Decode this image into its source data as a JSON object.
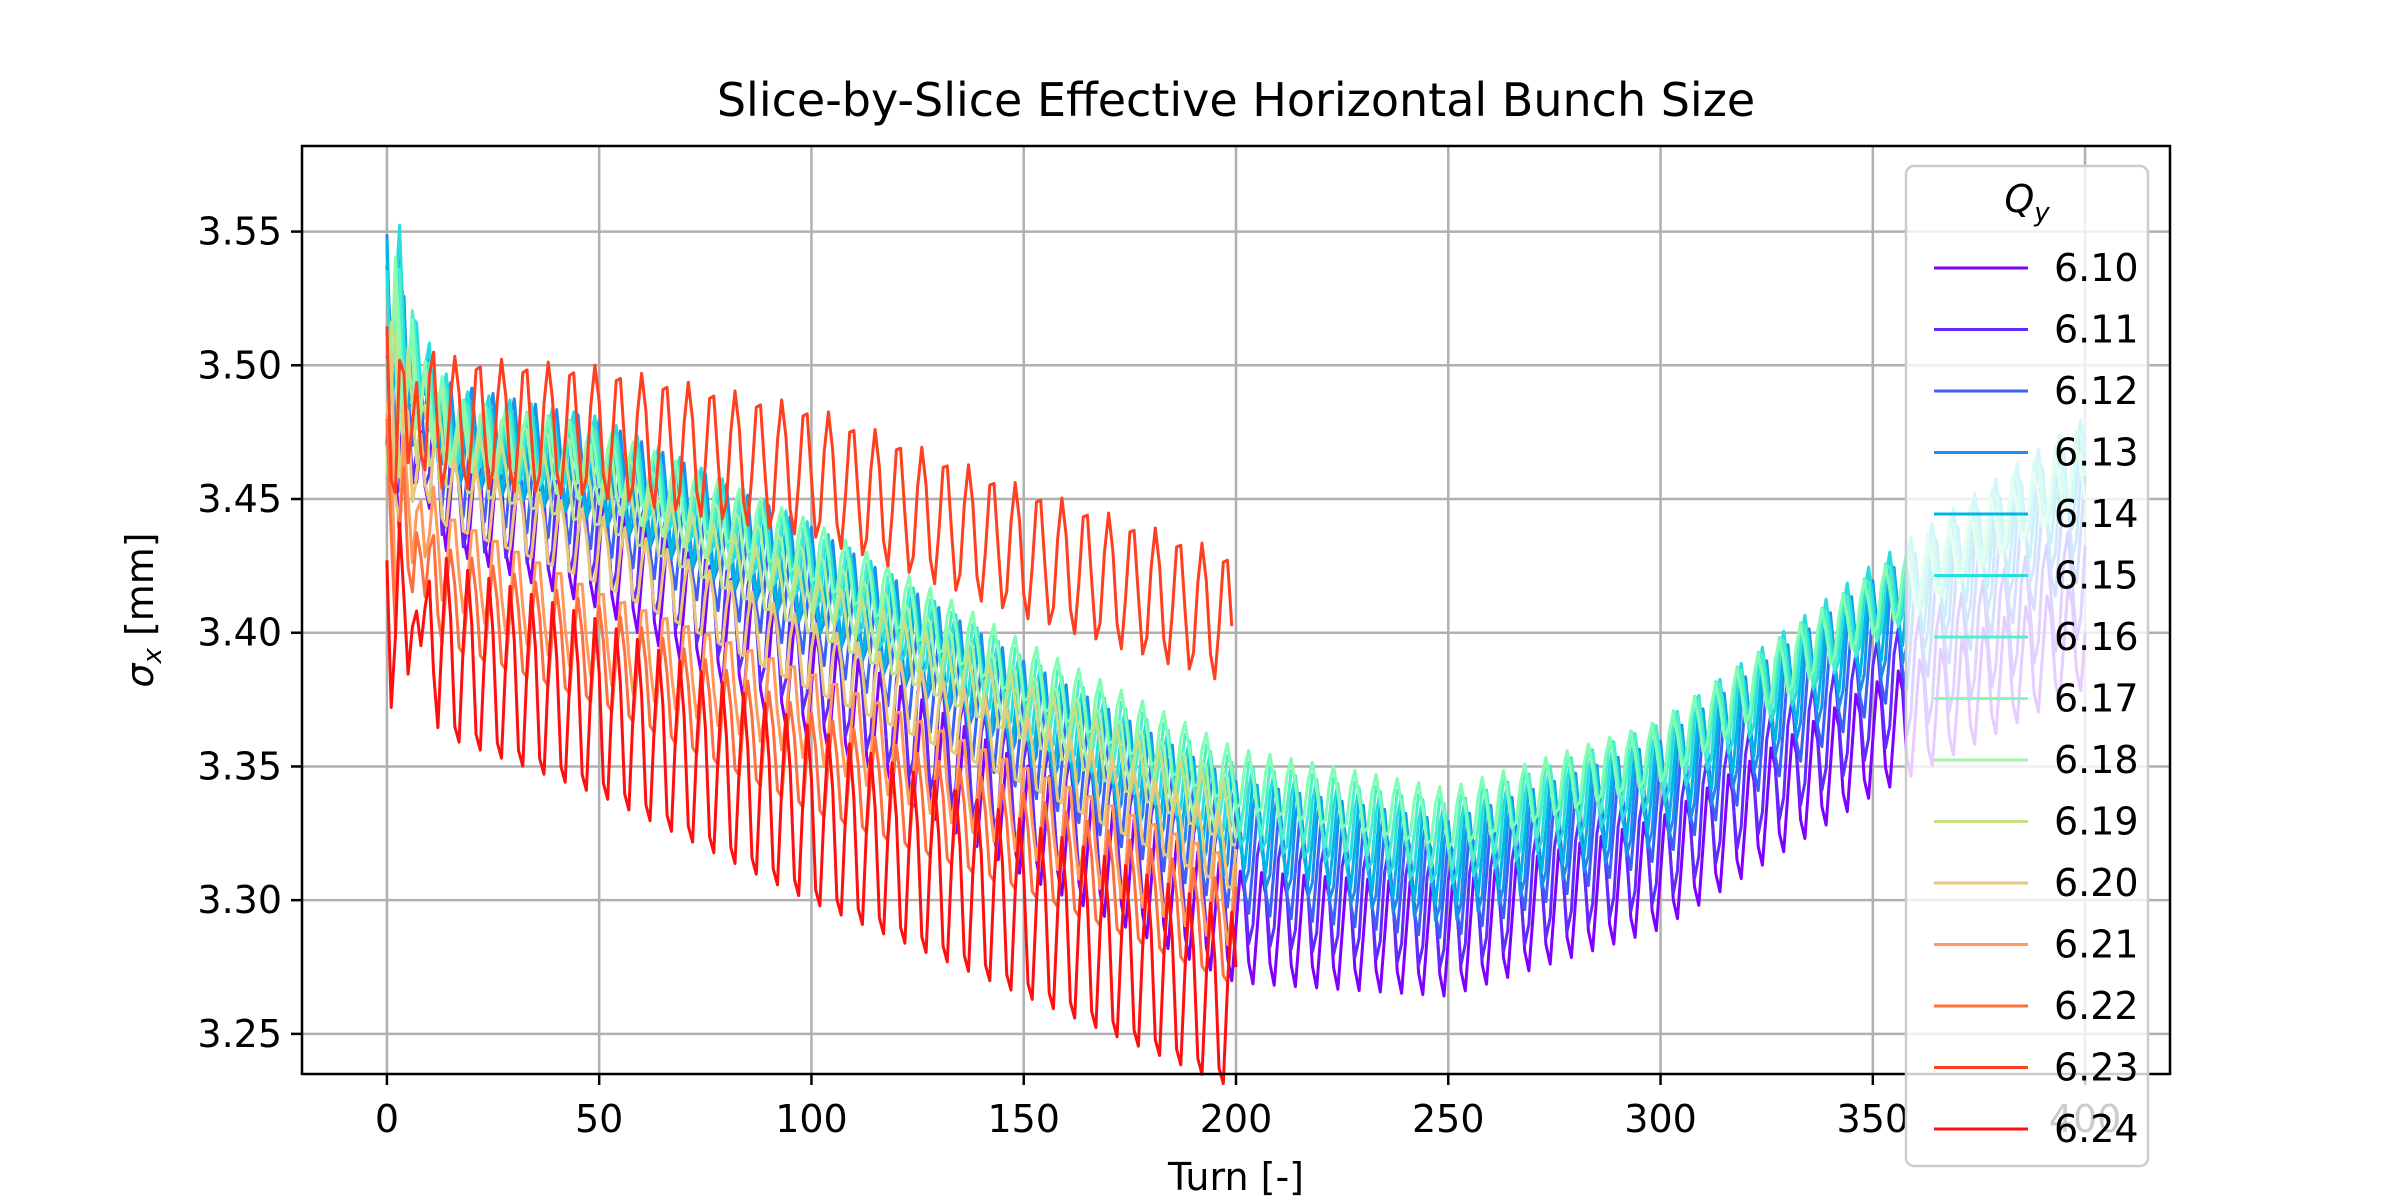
{
  "chart_data": {
    "type": "line",
    "title": "Slice-by-Slice Effective Horizontal Bunch Size",
    "xlabel": "Turn [-]",
    "ylabel": "σx [mm]",
    "ylabel_main": "σ",
    "ylabel_sub": "x",
    "ylabel_unit": " [mm]",
    "xlim": [
      -20,
      420
    ],
    "ylim": [
      3.235,
      3.582
    ],
    "xticks": [
      0,
      50,
      100,
      150,
      200,
      250,
      300,
      350,
      400
    ],
    "yticks": [
      3.25,
      3.3,
      3.35,
      3.4,
      3.45,
      3.5,
      3.55
    ],
    "grid": true,
    "legend": {
      "placement": "upper-right",
      "title": "Qy",
      "title_main": "Q",
      "title_sub": "y"
    },
    "series": [
      {
        "name": "6.10",
        "color": "#8000ff",
        "turn_max": 400,
        "start": 3.47,
        "trend": [
          [
            0,
            3.46
          ],
          [
            50,
            3.43
          ],
          [
            100,
            3.38
          ],
          [
            150,
            3.33
          ],
          [
            200,
            3.29
          ],
          [
            250,
            3.285
          ],
          [
            300,
            3.31
          ],
          [
            350,
            3.36
          ],
          [
            400,
            3.4
          ]
        ],
        "amp": 0.022,
        "period": 5.0,
        "phase": 0.0
      },
      {
        "name": "6.11",
        "color": "#622bfe",
        "turn_max": 400,
        "start": 3.48,
        "trend": [
          [
            0,
            3.46
          ],
          [
            50,
            3.44
          ],
          [
            100,
            3.39
          ],
          [
            150,
            3.34
          ],
          [
            200,
            3.305
          ],
          [
            250,
            3.295
          ],
          [
            300,
            3.32
          ],
          [
            350,
            3.375
          ],
          [
            400,
            3.42
          ]
        ],
        "amp": 0.022,
        "period": 5.0,
        "phase": 0.6
      },
      {
        "name": "6.12",
        "color": "#3b61f8",
        "turn_max": 400,
        "start": 3.5,
        "trend": [
          [
            0,
            3.47
          ],
          [
            50,
            3.45
          ],
          [
            100,
            3.41
          ],
          [
            150,
            3.36
          ],
          [
            200,
            3.315
          ],
          [
            250,
            3.305
          ],
          [
            300,
            3.335
          ],
          [
            350,
            3.39
          ],
          [
            400,
            3.44
          ]
        ],
        "amp": 0.02,
        "period": 5.0,
        "phase": 1.2
      },
      {
        "name": "6.13",
        "color": "#1d8ef0",
        "turn_max": 400,
        "start": 3.51,
        "trend": [
          [
            0,
            3.48
          ],
          [
            50,
            3.46
          ],
          [
            100,
            3.42
          ],
          [
            150,
            3.37
          ],
          [
            200,
            3.325
          ],
          [
            250,
            3.31
          ],
          [
            300,
            3.34
          ],
          [
            350,
            3.4
          ],
          [
            400,
            3.45
          ]
        ],
        "amp": 0.02,
        "period": 5.0,
        "phase": 1.8
      },
      {
        "name": "6.14",
        "color": "#00b6e6",
        "turn_max": 400,
        "start": 3.52,
        "trend": [
          [
            0,
            3.48
          ],
          [
            50,
            3.46
          ],
          [
            100,
            3.42
          ],
          [
            150,
            3.37
          ],
          [
            200,
            3.33
          ],
          [
            250,
            3.315
          ],
          [
            300,
            3.345
          ],
          [
            350,
            3.405
          ],
          [
            400,
            3.46
          ]
        ],
        "amp": 0.018,
        "period": 5.0,
        "phase": 2.4
      },
      {
        "name": "6.15",
        "color": "#2adddd",
        "turn_max": 400,
        "start": 3.53,
        "trend": [
          [
            0,
            3.48
          ],
          [
            50,
            3.465
          ],
          [
            100,
            3.425
          ],
          [
            150,
            3.375
          ],
          [
            200,
            3.335
          ],
          [
            250,
            3.32
          ],
          [
            300,
            3.35
          ],
          [
            350,
            3.41
          ],
          [
            400,
            3.465
          ]
        ],
        "amp": 0.016,
        "period": 5.0,
        "phase": 3.0
      },
      {
        "name": "6.16",
        "color": "#4df0c8",
        "turn_max": 400,
        "start": 3.52,
        "trend": [
          [
            0,
            3.48
          ],
          [
            50,
            3.465
          ],
          [
            100,
            3.425
          ],
          [
            150,
            3.38
          ],
          [
            200,
            3.34
          ],
          [
            250,
            3.325
          ],
          [
            300,
            3.355
          ],
          [
            350,
            3.41
          ],
          [
            400,
            3.465
          ]
        ],
        "amp": 0.014,
        "period": 5.0,
        "phase": 3.6
      },
      {
        "name": "6.17",
        "color": "#80ffb4",
        "turn_max": 400,
        "start": 3.51,
        "trend": [
          [
            0,
            3.48
          ],
          [
            50,
            3.465
          ],
          [
            100,
            3.43
          ],
          [
            150,
            3.385
          ],
          [
            200,
            3.345
          ],
          [
            250,
            3.33
          ],
          [
            300,
            3.355
          ],
          [
            350,
            3.41
          ],
          [
            400,
            3.46
          ]
        ],
        "amp": 0.012,
        "period": 5.0,
        "phase": 4.2
      },
      {
        "name": "6.18",
        "color": "#9ff4a6",
        "turn_max": 200,
        "start": 3.5,
        "trend": [
          [
            0,
            3.48
          ],
          [
            50,
            3.46
          ],
          [
            100,
            3.42
          ],
          [
            150,
            3.375
          ],
          [
            200,
            3.335
          ]
        ],
        "amp": 0.012,
        "period": 5.0,
        "phase": 4.8
      },
      {
        "name": "6.19",
        "color": "#c4e084",
        "turn_max": 200,
        "start": 3.49,
        "trend": [
          [
            0,
            3.47
          ],
          [
            50,
            3.45
          ],
          [
            100,
            3.41
          ],
          [
            150,
            3.37
          ],
          [
            200,
            3.33
          ]
        ],
        "amp": 0.012,
        "period": 5.0,
        "phase": 5.4
      },
      {
        "name": "6.20",
        "color": "#e8c77b",
        "turn_max": 200,
        "start": 3.47,
        "trend": [
          [
            0,
            3.46
          ],
          [
            50,
            3.43
          ],
          [
            100,
            3.39
          ],
          [
            150,
            3.355
          ],
          [
            200,
            3.315
          ]
        ],
        "amp": 0.014,
        "period": 5.0,
        "phase": 0.3
      },
      {
        "name": "6.21",
        "color": "#ff9a5b",
        "turn_max": 200,
        "start": 3.45,
        "trend": [
          [
            0,
            3.44
          ],
          [
            50,
            3.4
          ],
          [
            100,
            3.37
          ],
          [
            150,
            3.335
          ],
          [
            200,
            3.3
          ]
        ],
        "amp": 0.018,
        "period": 5.0,
        "phase": 0.9
      },
      {
        "name": "6.22",
        "color": "#ff7040",
        "turn_max": 200,
        "start": 3.44,
        "trend": [
          [
            0,
            3.42
          ],
          [
            50,
            3.39
          ],
          [
            100,
            3.35
          ],
          [
            150,
            3.32
          ],
          [
            200,
            3.285
          ]
        ],
        "amp": 0.02,
        "period": 5.0,
        "phase": 1.5
      },
      {
        "name": "6.23",
        "color": "#ff4020",
        "turn_max": 199,
        "start": 3.48,
        "trend": [
          [
            0,
            3.48
          ],
          [
            50,
            3.475
          ],
          [
            100,
            3.46
          ],
          [
            150,
            3.43
          ],
          [
            199,
            3.405
          ]
        ],
        "amp": 0.025,
        "period": 5.5,
        "phase": 2.1
      },
      {
        "name": "6.24",
        "color": "#ff1010",
        "turn_max": 200,
        "start": 3.41,
        "trend": [
          [
            0,
            3.4
          ],
          [
            50,
            3.37
          ],
          [
            100,
            3.33
          ],
          [
            150,
            3.295
          ],
          [
            200,
            3.26
          ]
        ],
        "amp": 0.035,
        "period": 5.0,
        "phase": 2.7
      }
    ]
  }
}
